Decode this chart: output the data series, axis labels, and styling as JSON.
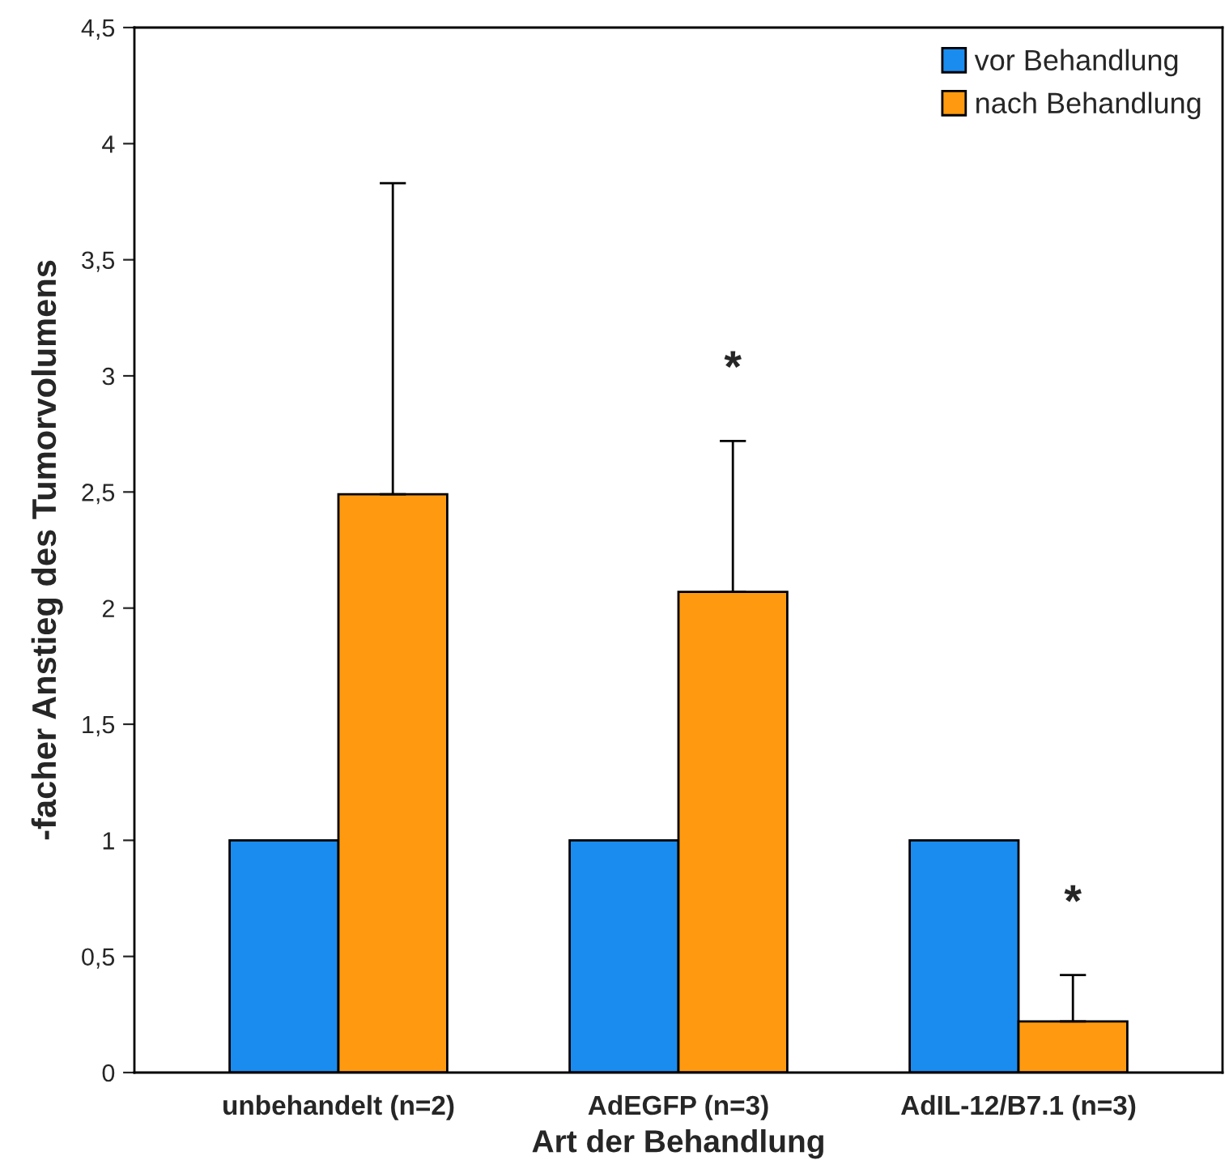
{
  "chart_data": {
    "type": "bar",
    "xlabel": "Art der Behandlung",
    "ylabel": "-facher Anstieg des Tumorvolumens",
    "categories": [
      "unbehandelt (n=2)",
      "AdEGFP (n=3)",
      "AdIL-12/B7.1 (n=3)"
    ],
    "series": [
      {
        "name": "vor Behandlung",
        "color": "#1a8cf0",
        "values": [
          1,
          1,
          1
        ]
      },
      {
        "name": "nach Behandlung",
        "color": "#ff9a10",
        "values": [
          2.49,
          2.07,
          0.22
        ],
        "errors": [
          [
            2.49,
            3.83
          ],
          [
            2.07,
            2.72
          ],
          [
            0.22,
            0.42
          ]
        ]
      }
    ],
    "ylim": [
      0,
      4.5
    ],
    "yticks": [
      0,
      {
        "value": 0.5,
        "label": "0,5"
      },
      1,
      {
        "value": 1.5,
        "label": "1,5"
      },
      2,
      {
        "value": 2.5,
        "label": "2,5"
      },
      3,
      {
        "value": 3.5,
        "label": "3,5"
      },
      4,
      {
        "value": 4.5,
        "label": "4,5"
      }
    ],
    "annotations": [
      "*",
      "*"
    ],
    "grid": false,
    "legend": "top right"
  }
}
